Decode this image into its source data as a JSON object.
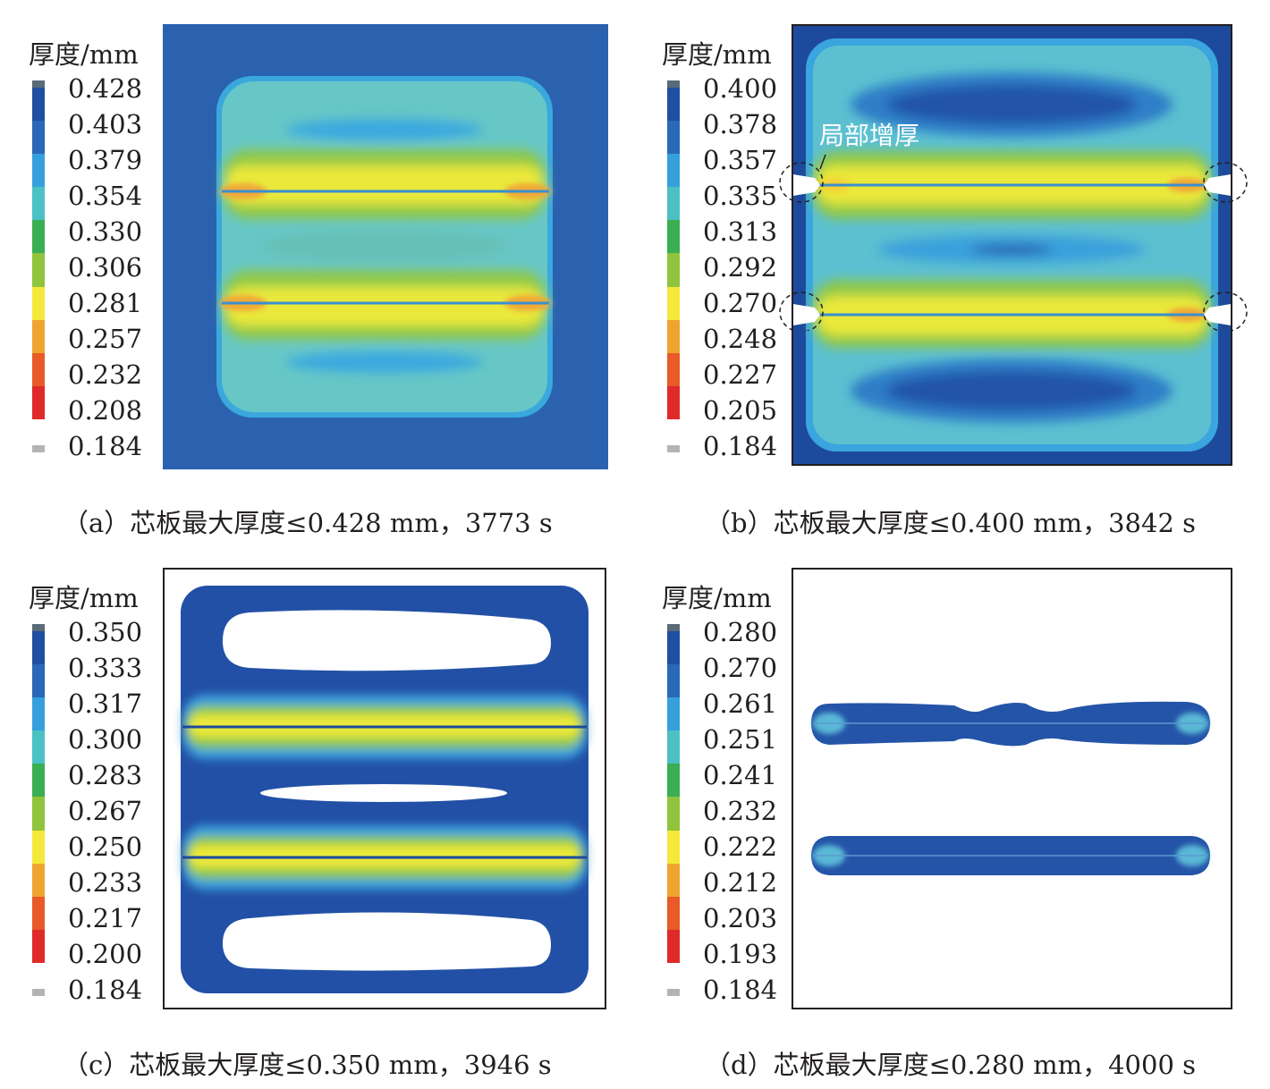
{
  "figure": {
    "panels": [
      {
        "id": "a",
        "legend_title": "厚度/mm",
        "legend_values": [
          "0.428",
          "0.403",
          "0.379",
          "0.354",
          "0.330",
          "0.306",
          "0.281",
          "0.257",
          "0.232",
          "0.208",
          "0.184"
        ],
        "caption": "（a）芯板最大厚度≤0.428 mm，3773 s"
      },
      {
        "id": "b",
        "legend_title": "厚度/mm",
        "legend_values": [
          "0.400",
          "0.378",
          "0.357",
          "0.335",
          "0.313",
          "0.292",
          "0.270",
          "0.248",
          "0.227",
          "0.205",
          "0.184"
        ],
        "caption": "（b）芯板最大厚度≤0.400 mm，3842 s",
        "annotation": "局部增厚"
      },
      {
        "id": "c",
        "legend_title": "厚度/mm",
        "legend_values": [
          "0.350",
          "0.333",
          "0.317",
          "0.300",
          "0.283",
          "0.267",
          "0.250",
          "0.233",
          "0.217",
          "0.200",
          "0.184"
        ],
        "caption": "（c）芯板最大厚度≤0.350 mm，3946 s"
      },
      {
        "id": "d",
        "legend_title": "厚度/mm",
        "legend_values": [
          "0.280",
          "0.270",
          "0.261",
          "0.251",
          "0.241",
          "0.232",
          "0.222",
          "0.212",
          "0.203",
          "0.193",
          "0.184"
        ],
        "caption": "（d）芯板最大厚度≤0.280 mm，4000 s"
      }
    ],
    "colormap": [
      "#5a6b78",
      "#1f4fa0",
      "#2a68b8",
      "#36a0dc",
      "#4cc1c4",
      "#3aae52",
      "#8fc43c",
      "#f4e83a",
      "#f0a430",
      "#e85a28",
      "#e02a2a",
      "#b4b4b4"
    ]
  }
}
